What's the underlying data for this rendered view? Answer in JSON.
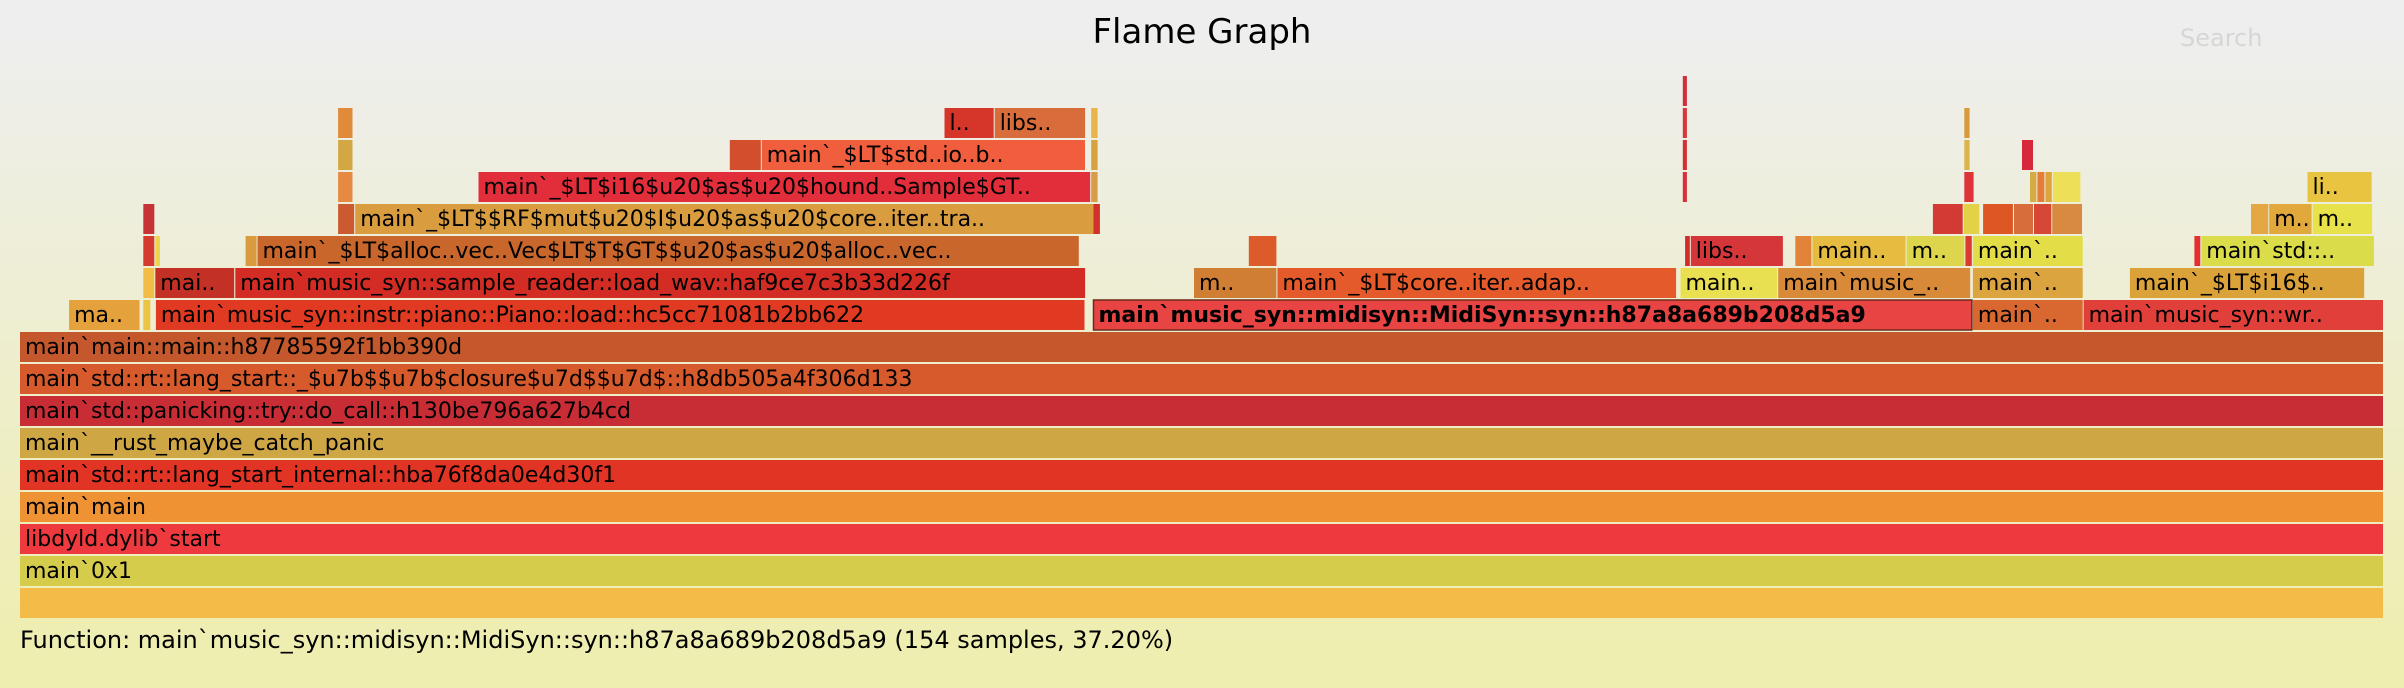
{
  "header": {
    "title": "Flame Graph",
    "search_label": "Search"
  },
  "details": {
    "text": "Function: main`music_syn::midisyn::MidiSyn::syn::h87a8a689b208d5a9 (154 samples, 37.20%)"
  },
  "colors": {
    "background_top": "#eeeeee",
    "background_bottom": "#eeeeb0",
    "highlight_frame": "#e84444"
  },
  "chart_data": {
    "type": "flamegraph",
    "total_samples": 414,
    "highlighted": {
      "label": "main`music_syn::midisyn::MidiSyn::syn::h87a8a689b208d5a9",
      "samples": 154,
      "percent": 37.2
    },
    "frames": [
      {
        "depth": 0,
        "start": 0,
        "samples": 414,
        "label": "",
        "color": "#f4bb48"
      },
      {
        "depth": 1,
        "start": 0,
        "samples": 414,
        "label": "main`0x1",
        "color": "#d5cc4c"
      },
      {
        "depth": 2,
        "start": 0,
        "samples": 414,
        "label": "libdyld.dylib`start",
        "color": "#ee3a3e"
      },
      {
        "depth": 3,
        "start": 0,
        "samples": 414,
        "label": "main`main",
        "color": "#ee9234"
      },
      {
        "depth": 4,
        "start": 0,
        "samples": 414,
        "label": "main`std::rt::lang_start_internal::hba76f8da0e4d30f1",
        "color": "#e23424"
      },
      {
        "depth": 5,
        "start": 0,
        "samples": 414,
        "label": "main`__rust_maybe_catch_panic",
        "color": "#cfa644"
      },
      {
        "depth": 6,
        "start": 0,
        "samples": 414,
        "label": "main`std::panicking::try::do_call::h130be796a627b4cd",
        "color": "#c82d36"
      },
      {
        "depth": 7,
        "start": 0,
        "samples": 414,
        "label": "main`std::rt::lang_start::_$u7b$$u7b$closure$u7d$$u7d$::h8db505a4f306d133",
        "color": "#d75a2d"
      },
      {
        "depth": 8,
        "start": 0,
        "samples": 414,
        "label": "main`main::main::h87785592f1bb390d",
        "color": "#c4582c"
      },
      {
        "depth": 9,
        "start": 8.6,
        "samples": 12.5,
        "label": "ma..",
        "color": "#e4a13c"
      },
      {
        "depth": 9,
        "start": 21.6,
        "samples": 1.4,
        "label": "",
        "color": "#ecc444"
      },
      {
        "depth": 9,
        "start": 23.8,
        "samples": 162.8,
        "label": "main`music_syn::instr::piano::Piano::load::hc5cc71081b2bb622",
        "color": "#e03a22"
      },
      {
        "depth": 9,
        "start": 188.0,
        "samples": 154,
        "label": "main`music_syn::midisyn::MidiSyn::syn::h87a8a689b208d5a9",
        "color": "#e84444",
        "highlight": true
      },
      {
        "depth": 9,
        "start": 342.0,
        "samples": 19.4,
        "label": "main`..",
        "color": "#d96830"
      },
      {
        "depth": 9,
        "start": 361.4,
        "samples": 52.6,
        "label": "main`music_syn::wr..",
        "color": "#e1403a"
      },
      {
        "depth": 10,
        "start": 21.6,
        "samples": 2.1,
        "label": "",
        "color": "#f2bd46"
      },
      {
        "depth": 10,
        "start": 23.7,
        "samples": 14.0,
        "label": "mai..",
        "color": "#c33126"
      },
      {
        "depth": 10,
        "start": 37.7,
        "samples": 149.0,
        "label": "main`music_syn::sample_reader::load_wav::haf9ce7c3b33d226f",
        "color": "#d22c24"
      },
      {
        "depth": 10,
        "start": 205.6,
        "samples": 14.6,
        "label": "m..",
        "color": "#cf7e34"
      },
      {
        "depth": 10,
        "start": 220.2,
        "samples": 70.0,
        "label": "main`_$LT$core..iter..adap..",
        "color": "#e45a2a"
      },
      {
        "depth": 10,
        "start": 290.8,
        "samples": 17.1,
        "label": "main..",
        "color": "#e8e050"
      },
      {
        "depth": 10,
        "start": 307.9,
        "samples": 33.8,
        "label": "main`music_..",
        "color": "#d98a38"
      },
      {
        "depth": 10,
        "start": 342.0,
        "samples": 19.4,
        "label": "main`..",
        "color": "#dca43e"
      },
      {
        "depth": 10,
        "start": 369.5,
        "samples": 41.2,
        "label": "main`_$LT$i16$..",
        "color": "#dba23a"
      },
      {
        "depth": 11,
        "start": 21.6,
        "samples": 2.1,
        "label": "",
        "color": "#d53a2e"
      },
      {
        "depth": 11,
        "start": 23.7,
        "samples": 1.0,
        "label": "",
        "color": "#ecd64c"
      },
      {
        "depth": 11,
        "start": 39.5,
        "samples": 2.1,
        "label": "",
        "color": "#d99a40"
      },
      {
        "depth": 11,
        "start": 41.6,
        "samples": 144.0,
        "label": "main`_$LT$alloc..vec..Vec$LT$T$GT$$u20$as$u20$alloc..vec..",
        "color": "#c9662c"
      },
      {
        "depth": 11,
        "start": 215.2,
        "samples": 5.0,
        "label": "",
        "color": "#dd5a2a"
      },
      {
        "depth": 11,
        "start": 291.6,
        "samples": 1.0,
        "label": "",
        "color": "#d02c2c"
      },
      {
        "depth": 11,
        "start": 292.6,
        "samples": 16.3,
        "label": "libs..",
        "color": "#d4363a"
      },
      {
        "depth": 11,
        "start": 310.9,
        "samples": 3.0,
        "label": "",
        "color": "#e1843a"
      },
      {
        "depth": 11,
        "start": 313.9,
        "samples": 16.5,
        "label": "main..",
        "color": "#e6bc40"
      },
      {
        "depth": 11,
        "start": 330.4,
        "samples": 10.3,
        "label": "ma..",
        "color": "#ddd64c"
      },
      {
        "depth": 11,
        "start": 340.7,
        "samples": 1.3,
        "label": "",
        "color": "#dc3a30"
      },
      {
        "depth": 11,
        "start": 342.0,
        "samples": 19.4,
        "label": "main`..",
        "color": "#e3de48"
      },
      {
        "depth": 11,
        "start": 380.8,
        "samples": 1.2,
        "label": "",
        "color": "#e3302e"
      },
      {
        "depth": 11,
        "start": 382.0,
        "samples": 30.4,
        "label": "main`std::..",
        "color": "#dadc4a"
      },
      {
        "depth": 12,
        "start": 21.6,
        "samples": 2.1,
        "label": "",
        "color": "#c63236"
      },
      {
        "depth": 12,
        "start": 55.7,
        "samples": 3.0,
        "label": "",
        "color": "#cc5a30"
      },
      {
        "depth": 12,
        "start": 58.7,
        "samples": 129.5,
        "label": "main`_$LT$$RF$mut$u20$I$u20$as$u20$core..iter..tra..",
        "color": "#d99c3e"
      },
      {
        "depth": 12,
        "start": 188.0,
        "samples": 1.3,
        "label": "",
        "color": "#d3302a"
      },
      {
        "depth": 12,
        "start": 335.0,
        "samples": 5.4,
        "label": "",
        "color": "#d33a34"
      },
      {
        "depth": 12,
        "start": 340.4,
        "samples": 2.9,
        "label": "",
        "color": "#e3d248"
      },
      {
        "depth": 12,
        "start": 343.8,
        "samples": 5.4,
        "label": "",
        "color": "#dd5624"
      },
      {
        "depth": 12,
        "start": 349.2,
        "samples": 3.5,
        "label": "",
        "color": "#d86d3c"
      },
      {
        "depth": 12,
        "start": 352.7,
        "samples": 3.2,
        "label": "",
        "color": "#d64736"
      },
      {
        "depth": 12,
        "start": 355.9,
        "samples": 5.4,
        "label": "",
        "color": "#d88a40"
      },
      {
        "depth": 12,
        "start": 390.7,
        "samples": 3.2,
        "label": "",
        "color": "#e3a844"
      },
      {
        "depth": 12,
        "start": 393.9,
        "samples": 7.6,
        "label": "m..",
        "color": "#e1a83c"
      },
      {
        "depth": 12,
        "start": 401.5,
        "samples": 10.6,
        "label": "ma..",
        "color": "#e8e24a"
      },
      {
        "depth": 13,
        "start": 55.7,
        "samples": 2.7,
        "label": "",
        "color": "#e58a40"
      },
      {
        "depth": 13,
        "start": 80.3,
        "samples": 107.3,
        "label": "main`_$LT$i16$u20$as$u20$hound..Sample$GT..",
        "color": "#e12e3a"
      },
      {
        "depth": 13,
        "start": 187.6,
        "samples": 1.3,
        "label": "",
        "color": "#d79c48"
      },
      {
        "depth": 13,
        "start": 291.2,
        "samples": 0.9,
        "label": "",
        "color": "#d8303a"
      },
      {
        "depth": 13,
        "start": 340.5,
        "samples": 1.8,
        "label": "",
        "color": "#dd343a"
      },
      {
        "depth": 13,
        "start": 352.0,
        "samples": 1.3,
        "label": "",
        "color": "#d6aa44"
      },
      {
        "depth": 13,
        "start": 353.3,
        "samples": 1.4,
        "label": "",
        "color": "#e67c3a"
      },
      {
        "depth": 13,
        "start": 354.7,
        "samples": 1.3,
        "label": "",
        "color": "#dca43a"
      },
      {
        "depth": 13,
        "start": 356.0,
        "samples": 5.0,
        "label": "",
        "color": "#eedf58"
      },
      {
        "depth": 13,
        "start": 400.6,
        "samples": 11.4,
        "label": "li..",
        "color": "#e8c440"
      },
      {
        "depth": 14,
        "start": 55.7,
        "samples": 2.7,
        "label": "",
        "color": "#d3a844"
      },
      {
        "depth": 14,
        "start": 124.3,
        "samples": 5.6,
        "label": "",
        "color": "#d24e2c"
      },
      {
        "depth": 14,
        "start": 129.9,
        "samples": 56.8,
        "label": "main`_$LT$std..io..b..",
        "color": "#f05e3e"
      },
      {
        "depth": 14,
        "start": 187.6,
        "samples": 1.3,
        "label": "",
        "color": "#d7a240"
      },
      {
        "depth": 14,
        "start": 291.2,
        "samples": 0.9,
        "label": "",
        "color": "#d43034"
      },
      {
        "depth": 14,
        "start": 340.5,
        "samples": 1.1,
        "label": "",
        "color": "#dbb44e"
      },
      {
        "depth": 14,
        "start": 350.6,
        "samples": 2.1,
        "label": "",
        "color": "#d6283a"
      },
      {
        "depth": 15,
        "start": 55.7,
        "samples": 2.7,
        "label": "",
        "color": "#e08a3a"
      },
      {
        "depth": 15,
        "start": 161.9,
        "samples": 8.8,
        "label": "l..",
        "color": "#d6362a"
      },
      {
        "depth": 15,
        "start": 170.7,
        "samples": 16.0,
        "label": "libs..",
        "color": "#d86c3a"
      },
      {
        "depth": 15,
        "start": 187.6,
        "samples": 1.3,
        "label": "",
        "color": "#e9b44a"
      },
      {
        "depth": 15,
        "start": 291.2,
        "samples": 0.9,
        "label": "",
        "color": "#d7383a"
      },
      {
        "depth": 15,
        "start": 340.5,
        "samples": 1.1,
        "label": "",
        "color": "#d99a3e"
      },
      {
        "depth": 16,
        "start": 291.2,
        "samples": 0.9,
        "label": "",
        "color": "#d0303a"
      }
    ]
  }
}
